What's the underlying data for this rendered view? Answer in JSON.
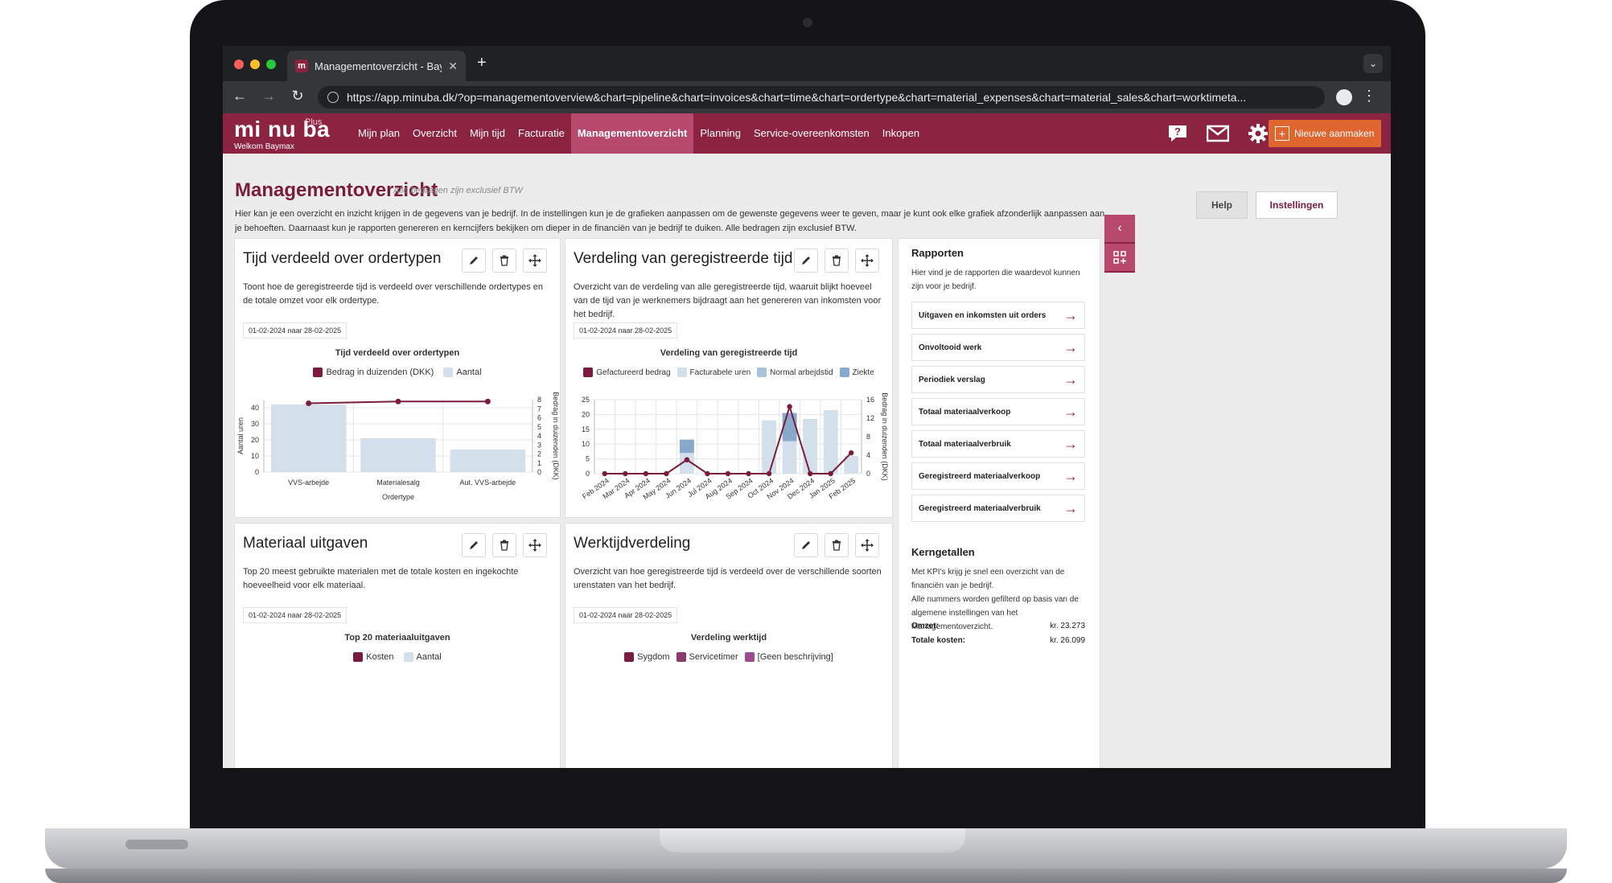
{
  "browser": {
    "tab_title": "Managementoverzicht - Baym",
    "tab_favicon": "m",
    "url": "https://app.minuba.dk/?op=managementoverview&chart=pipeline&chart=invoices&chart=time&chart=ordertype&chart=material_expenses&chart=material_sales&chart=worktimeta..."
  },
  "app": {
    "logo": "mi nu ba",
    "logo_plus": "Plus",
    "welcome": "Welkom  Baymax",
    "menu": [
      "Mijn plan",
      "Overzicht",
      "Mijn tijd",
      "Facturatie",
      "Managementoverzicht",
      "Planning",
      "Service-overeenkomsten",
      "Inkopen"
    ],
    "active_menu": "Managementoverzicht",
    "new_button": "Nieuwe aanmaken",
    "brand_color": "#8b2341",
    "accent_color": "#e0662f"
  },
  "page": {
    "title": "Managementoverzicht",
    "subtitle": "Alle bedragen zijn exclusief BTW",
    "description": "Hier kan je een overzicht en inzicht krijgen in de gegevens van je bedrijf. In de instellingen kun je de grafieken aanpassen om de gewenste gegevens weer te geven, maar je kunt ook elke grafiek afzonderlijk aanpassen aan je behoeften. Daarnaast kun je rapporten genereren en kerncijfers bekijken om dieper in de financiën van je bedrijf te duiken. Alle bedragen zijn exclusief BTW.",
    "help_label": "Help",
    "settings_label": "Instellingen"
  },
  "cards": {
    "ordertypes": {
      "title": "Tijd verdeeld over ordertypen",
      "desc": "Toont hoe de geregistreerde tijd is verdeeld over verschillende ordertypes en de totale omzet voor elk ordertype.",
      "date": "01-02-2024 naar 28-02-2025"
    },
    "registered": {
      "title": "Verdeling van geregistreerde tijd",
      "desc": "Overzicht van de verdeling van alle geregistreerde tijd, waaruit blijkt hoeveel van de tijd van je werknemers bijdraagt aan het genereren van inkomsten voor het bedrijf.",
      "date": "01-02-2024 naar 28-02-2025"
    },
    "material": {
      "title": "Materiaal uitgaven",
      "desc": "Top 20 meest gebruikte materialen met de totale kosten en ingekochte hoeveelheid voor elk materiaal.",
      "date": "01-02-2024 naar 28-02-2025",
      "chart_title": "Top 20 materiaaluitgaven",
      "legend": [
        "Kosten",
        "Aantal"
      ]
    },
    "worktime": {
      "title": "Werktijdverdeling",
      "desc": "Overzicht van hoe geregistreerde tijd is verdeeld over de verschillende soorten urenstaten van het bedrijf.",
      "date": "01-02-2024 naar 28-02-2025",
      "chart_title": "Verdeling werktijd",
      "legend": [
        "Sygdom",
        "Servicetimer",
        "[Geen beschrijving]"
      ]
    }
  },
  "chart_data": [
    {
      "type": "bar",
      "title": "Tijd verdeeld over ordertypen",
      "categories": [
        "VVS-arbejde",
        "Materialesalg",
        "Aut. VVS-arbejde"
      ],
      "xlabel": "Ordertype",
      "ylabel": "Aantal uren",
      "y2label": "Bedrag in duizenden (DKK)",
      "ylim": [
        0,
        45
      ],
      "yticks": [
        0,
        10,
        20,
        30,
        40
      ],
      "y2lim": [
        0,
        8
      ],
      "y2ticks": [
        0,
        1,
        2,
        3,
        4,
        5,
        6,
        7,
        8
      ],
      "series": [
        {
          "name": "Bedrag in duizenden (DKK)",
          "kind": "line",
          "axis": "right",
          "color": "#7a1c3a",
          "values": [
            7.6,
            7.8,
            7.8
          ]
        },
        {
          "name": "Aantal",
          "kind": "bar",
          "axis": "left",
          "color": "#d3e0ec",
          "values": [
            42,
            21,
            14
          ]
        }
      ]
    },
    {
      "type": "bar",
      "title": "Verdeling van geregistreerde tijd",
      "categories": [
        "Feb 2024",
        "Mar 2024",
        "Apr 2024",
        "May 2024",
        "Jun 2024",
        "Jul 2024",
        "Aug 2024",
        "Sep 2024",
        "Oct 2024",
        "Nov 2024",
        "Dec 2024",
        "Jan 2025",
        "Feb 2025"
      ],
      "ylim": [
        0,
        25
      ],
      "yticks": [
        0,
        5,
        10,
        15,
        20,
        25
      ],
      "y2label": "Bedrag in duizenden (DKK)",
      "y2lim": [
        0,
        16
      ],
      "y2ticks": [
        0,
        4,
        8,
        12,
        16
      ],
      "series": [
        {
          "name": "Gefactureerd bedrag",
          "kind": "line",
          "axis": "right",
          "color": "#7a1c3a",
          "values": [
            0,
            0,
            0,
            0,
            3,
            0,
            0,
            0,
            0,
            14.5,
            0,
            0,
            4.5
          ]
        },
        {
          "name": "Facturabele uren",
          "kind": "bar",
          "axis": "left",
          "color": "#d3e0ec",
          "values": [
            0,
            0,
            0,
            0,
            7,
            0,
            0,
            0,
            0,
            11,
            18.5,
            21.5,
            6
          ]
        },
        {
          "name": "Normal arbejdstid",
          "kind": "bar",
          "axis": "left",
          "color": "#a9c3dc",
          "values": [
            0,
            0,
            0,
            0,
            0,
            0,
            0,
            0,
            0,
            0,
            0,
            0,
            0
          ]
        },
        {
          "name": "Ziekte",
          "kind": "bar",
          "axis": "left",
          "color": "#88a9cb",
          "values": [
            0,
            0,
            0,
            0,
            4.5,
            0,
            0,
            0,
            0,
            9.5,
            0,
            0,
            0
          ]
        }
      ],
      "extra_bars": [
        {
          "category": "Oct 2024",
          "value": 18,
          "color": "#d3e0ec"
        }
      ]
    }
  ],
  "sidebar": {
    "rapporten_title": "Rapporten",
    "rapporten_desc": "Hier vind je de rapporten die waardevol kunnen zijn voor je bedrijf.",
    "reports": [
      "Uitgaven en inkomsten uit orders",
      "Onvoltooid werk",
      "Periodiek verslag",
      "Totaal materiaalverkoop",
      "Totaal materiaalverbruik",
      "Geregistreerd materiaalverkoop",
      "Geregistreerd materiaalverbruik"
    ],
    "kpi_title": "Kerngetallen",
    "kpi_desc1": "Met KPI's krijg je snel een overzicht van de financiën van je bedrijf.",
    "kpi_desc2": "Alle nummers worden gefilterd op basis van de algemene instellingen van het Managementoverzicht.",
    "kpis": [
      {
        "label": "Omzet:",
        "value": "kr. 23.273"
      },
      {
        "label": "Totale kosten:",
        "value": "kr. 26.099"
      }
    ]
  }
}
